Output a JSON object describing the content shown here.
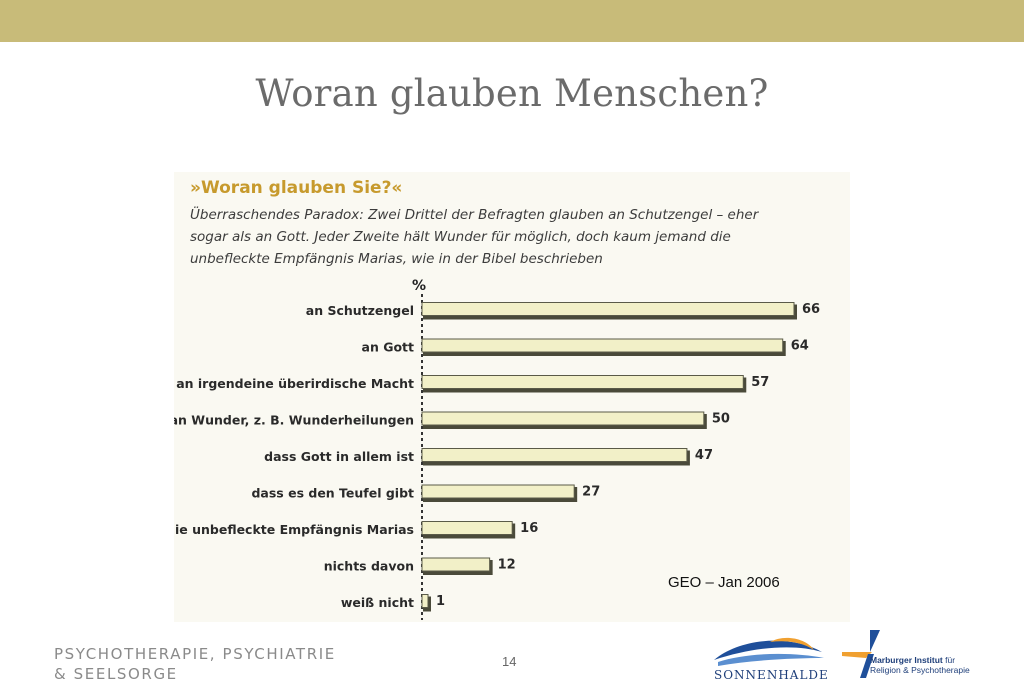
{
  "slide": {
    "title": "Woran glauben Menschen?",
    "footer_line1": "PSYCHOTHERAPIE, PSYCHIATRIE",
    "footer_line2": "& SEELSORGE",
    "page_number": "14",
    "source": "GEO – Jan 2006"
  },
  "logos": {
    "sonnenhalde": "SONNENHALDE",
    "marburger_bold": "Marburger Institut",
    "marburger_rest1": "für",
    "marburger_rest2": "Religion & Psychotherapie"
  },
  "colors": {
    "topbar": "#c8bb79",
    "bar_fill": "#f2f0c8",
    "bar_shadow": "#4a4a3a",
    "chart_title": "#c79a2d"
  },
  "chart_data": {
    "type": "bar",
    "orientation": "horizontal",
    "title": "»Woran glauben Sie?«",
    "subtitle": "Überraschendes Paradox: Zwei Drittel der Befragten glauben an Schutzengel – eher sogar als an Gott. Jeder Zweite hält Wunder für möglich, doch kaum jemand die unbefleckte Empfängnis Marias, wie in der Bibel beschrieben",
    "unit": "%",
    "categories": [
      "an Schutzengel",
      "an Gott",
      "an irgendeine überirdische Macht",
      "an Wunder, z. B. Wunderheilungen",
      "dass Gott in allem ist",
      "dass es den Teufel gibt",
      "an die unbefleckte Empfängnis Marias",
      "nichts davon",
      "weiß nicht"
    ],
    "values": [
      66,
      64,
      57,
      50,
      47,
      27,
      16,
      12,
      1
    ],
    "xlim": [
      0,
      70
    ],
    "grid": false,
    "legend": "none"
  }
}
